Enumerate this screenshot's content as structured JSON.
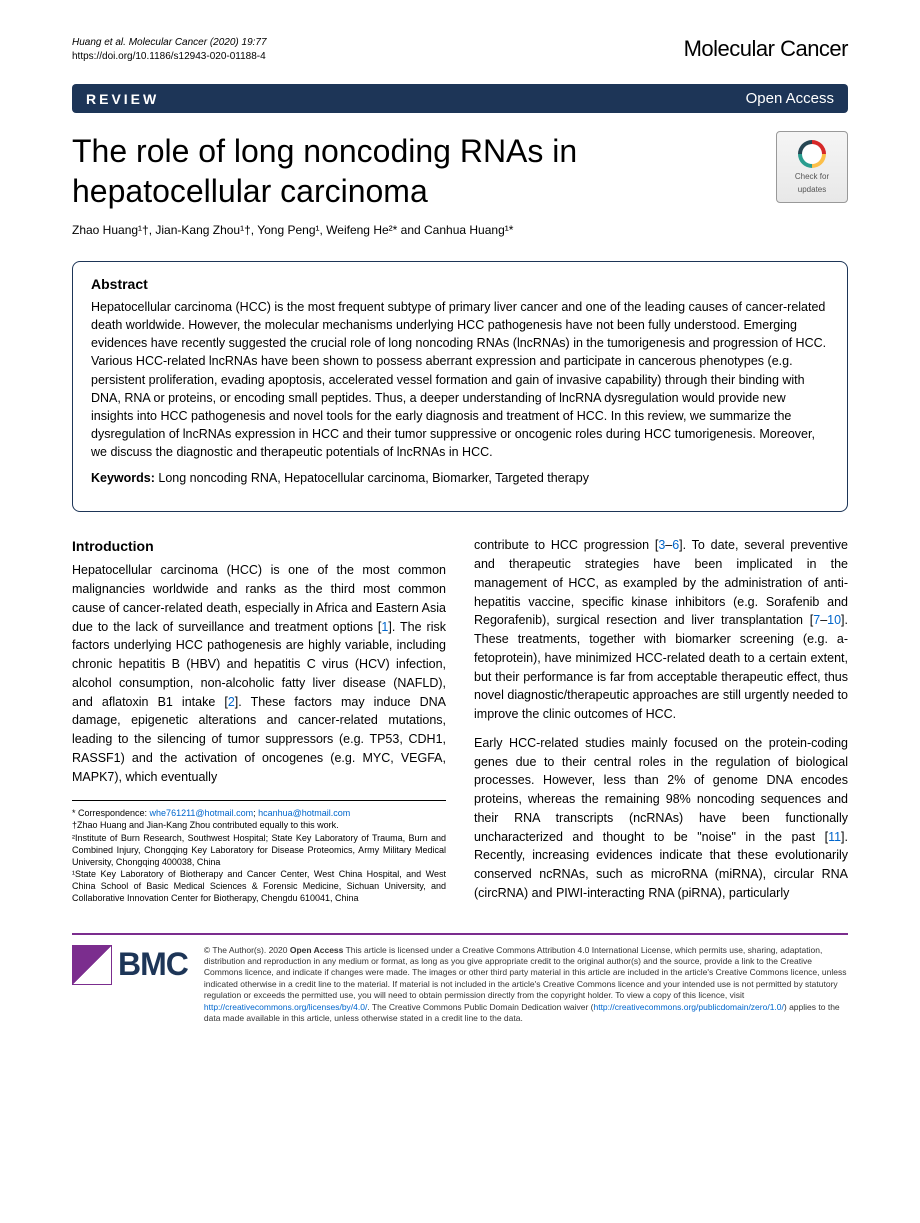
{
  "header": {
    "citation": "Huang et al. Molecular Cancer        (2020) 19:77",
    "doi": "https://doi.org/10.1186/s12943-020-01188-4",
    "journal": "Molecular Cancer"
  },
  "banner": {
    "type": "REVIEW",
    "access": "Open Access"
  },
  "title": "The role of long noncoding RNAs in hepatocellular carcinoma",
  "crossmark": {
    "line1": "Check for",
    "line2": "updates"
  },
  "authors": "Zhao Huang¹†, Jian-Kang Zhou¹†, Yong Peng¹, Weifeng He²* and Canhua Huang¹*",
  "abstract": {
    "heading": "Abstract",
    "body": "Hepatocellular carcinoma (HCC) is the most frequent subtype of primary liver cancer and one of the leading causes of cancer-related death worldwide. However, the molecular mechanisms underlying HCC pathogenesis have not been fully understood. Emerging evidences have recently suggested the crucial role of long noncoding RNAs (lncRNAs) in the tumorigenesis and progression of HCC. Various HCC-related lncRNAs have been shown to possess aberrant expression and participate in cancerous phenotypes (e.g. persistent proliferation, evading apoptosis, accelerated vessel formation and gain of invasive capability) through their binding with DNA, RNA or proteins, or encoding small peptides. Thus, a deeper understanding of lncRNA dysregulation would provide new insights into HCC pathogenesis and novel tools for the early diagnosis and treatment of HCC. In this review, we summarize the dysregulation of lncRNAs expression in HCC and their tumor suppressive or oncogenic roles during HCC tumorigenesis. Moreover, we discuss the diagnostic and therapeutic potentials of lncRNAs in HCC.",
    "keywords_label": "Keywords:",
    "keywords": " Long noncoding RNA, Hepatocellular carcinoma, Biomarker, Targeted therapy"
  },
  "intro": {
    "heading": "Introduction",
    "p1a": "Hepatocellular carcinoma (HCC) is one of the most common malignancies worldwide and ranks as the third most common cause of cancer-related death, especially in Africa and Eastern Asia due to the lack of surveillance and treatment options [",
    "ref1": "1",
    "p1b": "]. The risk factors underlying HCC pathogenesis are highly variable, including chronic hepatitis B (HBV) and hepatitis C virus (HCV) infection, alcohol consumption, non-alcoholic fatty liver disease (NAFLD), and aflatoxin B1 intake [",
    "ref2": "2",
    "p1c": "]. These factors may induce DNA damage, epigenetic alterations and cancer-related mutations, leading to the silencing of tumor suppressors (e.g. TP53, CDH1, RASSF1) and the activation of oncogenes (e.g. MYC, VEGFA, MAPK7), which eventually",
    "p2a": "contribute to HCC progression [",
    "ref3": "3",
    "ref3dash": "–",
    "ref6": "6",
    "p2b": "]. To date, several preventive and therapeutic strategies have been implicated in the management of HCC, as exampled by the administration of anti-hepatitis vaccine, specific kinase inhibitors (e.g. Sorafenib and Regorafenib), surgical resection and liver transplantation [",
    "ref7": "7",
    "ref7dash": "–",
    "ref10": "10",
    "p2c": "]. These treatments, together with biomarker screening (e.g. a-fetoprotein), have minimized HCC-related death to a certain extent, but their performance is far from acceptable therapeutic effect, thus novel diagnostic/therapeutic approaches are still urgently needed to improve the clinic outcomes of HCC.",
    "p3a": "Early HCC-related studies mainly focused on the protein-coding genes due to their central roles in the regulation of biological processes. However, less than 2% of genome DNA encodes proteins, whereas the remaining 98% noncoding sequences and their RNA transcripts (ncRNAs) have been functionally uncharacterized and thought to be \"noise\" in the past [",
    "ref11": "11",
    "p3b": "]. Recently, increasing evidences indicate that these evolutionarily conserved ncRNAs, such as microRNA (miRNA), circular RNA (circRNA) and PIWI-interacting RNA (piRNA), particularly"
  },
  "footnotes": {
    "corr_label": "* Correspondence: ",
    "email1": "whe761211@hotmail.com",
    "sep": "; ",
    "email2": "hcanhua@hotmail.com",
    "contrib": "†Zhao Huang and Jian-Kang Zhou contributed equally to this work.",
    "aff2": "²Institute of Burn Research, Southwest Hospital; State Key Laboratory of Trauma, Burn and Combined Injury, Chongqing Key Laboratory for Disease Proteomics, Army Military Medical University, Chongqing 400038, China",
    "aff1": "¹State Key Laboratory of Biotherapy and Cancer Center, West China Hospital, and West China School of Basic Medical Sciences & Forensic Medicine, Sichuan University, and Collaborative Innovation Center for Biotherapy, Chengdu 610041, China"
  },
  "license": {
    "bmc": "BMC",
    "text1": "© The Author(s). 2020 ",
    "oa": "Open Access",
    "text2": " This article is licensed under a Creative Commons Attribution 4.0 International License, which permits use, sharing, adaptation, distribution and reproduction in any medium or format, as long as you give appropriate credit to the original author(s) and the source, provide a link to the Creative Commons licence, and indicate if changes were made. The images or other third party material in this article are included in the article's Creative Commons licence, unless indicated otherwise in a credit line to the material. If material is not included in the article's Creative Commons licence and your intended use is not permitted by statutory regulation or exceeds the permitted use, you will need to obtain permission directly from the copyright holder. To view a copy of this licence, visit ",
    "link1": "http://creativecommons.org/licenses/by/4.0/",
    "text3": ". The Creative Commons Public Domain Dedication waiver (",
    "link2": "http://creativecommons.org/publicdomain/zero/1.0/",
    "text4": ") applies to the data made available in this article, unless otherwise stated in a credit line to the data."
  }
}
